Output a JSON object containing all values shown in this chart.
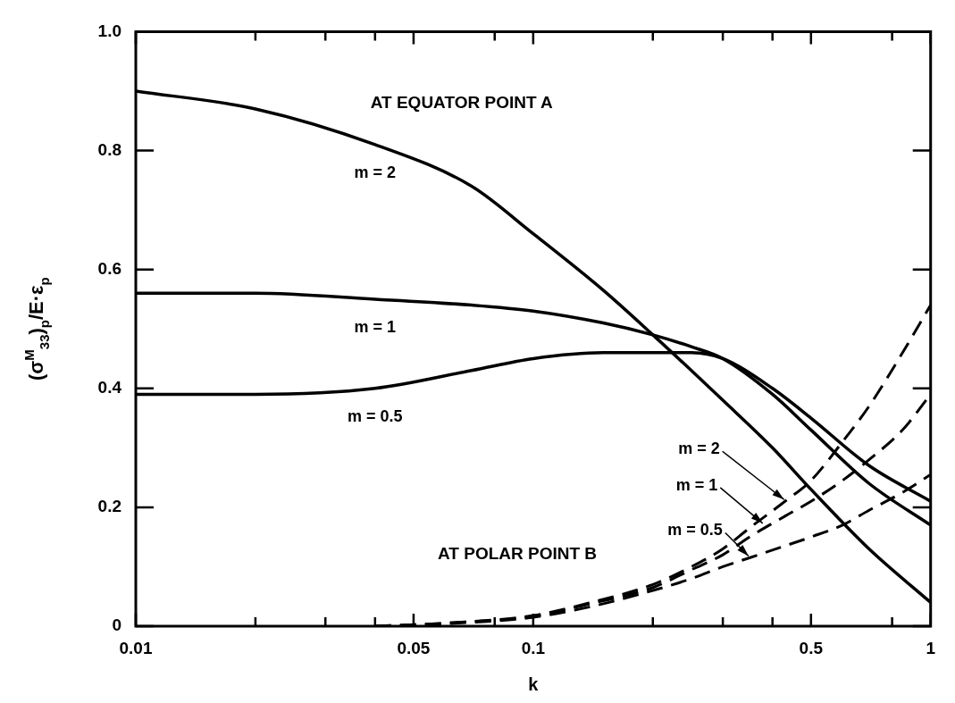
{
  "chart_data": {
    "type": "line",
    "xlabel": "k",
    "ylabel": "(σ$^{M}$$_{33}$)$_{p}$/E·ε$_{p}$",
    "annotations": [
      "AT EQUATOR POINT A",
      "AT POLAR POINT B",
      {
        "text": "m = 2",
        "x": 0.43,
        "y": 0.21
      },
      {
        "text": "m = 1",
        "x": 0.38,
        "y": 0.17
      },
      {
        "text": "m = 0.5",
        "x": 0.35,
        "y": 0.115
      }
    ],
    "log": "x",
    "xlim": [
      0.01,
      1
    ],
    "xticks": [
      0.01,
      {
        "value": 0.02,
        "label": null
      },
      {
        "value": 0.03,
        "label": null
      },
      {
        "value": 0.04,
        "label": null
      },
      0.05,
      {
        "value": 0.08,
        "label": null
      },
      0.1,
      {
        "value": 0.2,
        "label": null
      },
      {
        "value": 0.3,
        "label": null
      },
      {
        "value": 0.4,
        "label": null
      },
      0.5,
      {
        "value": 0.8,
        "label": null
      },
      1
    ],
    "ylim": [
      0,
      1
    ],
    "yticks": [
      0,
      0.2,
      0.4,
      0.6,
      0.8,
      {
        "value": 1,
        "label": "1.0"
      }
    ],
    "grid": false,
    "legend": false,
    "marker": "none",
    "series": [
      {
        "name": "m = 2",
        "color": "#000000",
        "line_style": "solid",
        "x": [
          0.01,
          0.02,
          0.04,
          0.07,
          0.1,
          0.15,
          0.2,
          0.25,
          0.3,
          0.4,
          0.5,
          0.7,
          1
        ],
        "values": [
          0.9,
          0.87,
          0.81,
          0.74,
          0.66,
          0.565,
          0.49,
          0.43,
          0.38,
          0.3,
          0.23,
          0.13,
          0.04
        ]
      },
      {
        "name": "m = 1",
        "color": "#000000",
        "line_style": "solid",
        "x": [
          0.01,
          0.02,
          0.04,
          0.07,
          0.1,
          0.15,
          0.2,
          0.25,
          0.3,
          0.4,
          0.5,
          0.7,
          1
        ],
        "values": [
          0.56,
          0.56,
          0.55,
          0.54,
          0.53,
          0.51,
          0.49,
          0.47,
          0.45,
          0.39,
          0.33,
          0.24,
          0.17
        ]
      },
      {
        "name": "m = 0.5",
        "color": "#000000",
        "line_style": "solid",
        "x": [
          0.01,
          0.02,
          0.04,
          0.07,
          0.1,
          0.15,
          0.2,
          0.25,
          0.3,
          0.4,
          0.5,
          0.7,
          1
        ],
        "values": [
          0.39,
          0.39,
          0.4,
          0.43,
          0.45,
          0.46,
          0.46,
          0.46,
          0.45,
          0.4,
          0.35,
          0.27,
          0.21
        ]
      },
      {
        "color": "#000000",
        "line_style": "dashed",
        "x": [
          0.04,
          0.06,
          0.1,
          0.14,
          0.2,
          0.25,
          0.3,
          0.35,
          0.43,
          0.5,
          0.6,
          0.7,
          0.85,
          1
        ],
        "values": [
          0,
          0.005,
          0.018,
          0.04,
          0.07,
          0.1,
          0.13,
          0.165,
          0.21,
          0.245,
          0.31,
          0.37,
          0.46,
          0.54
        ]
      },
      {
        "color": "#000000",
        "line_style": "dashed",
        "x": [
          0.04,
          0.06,
          0.1,
          0.14,
          0.2,
          0.25,
          0.3,
          0.35,
          0.43,
          0.5,
          0.6,
          0.7,
          0.85,
          1
        ],
        "values": [
          0,
          0.005,
          0.017,
          0.038,
          0.065,
          0.095,
          0.12,
          0.15,
          0.185,
          0.21,
          0.245,
          0.28,
          0.33,
          0.39
        ]
      },
      {
        "color": "#000000",
        "line_style": "dashed",
        "x": [
          0.04,
          0.06,
          0.1,
          0.14,
          0.2,
          0.25,
          0.3,
          0.35,
          0.43,
          0.5,
          0.6,
          0.7,
          0.85,
          1
        ],
        "values": [
          0,
          0.004,
          0.015,
          0.033,
          0.06,
          0.08,
          0.1,
          0.115,
          0.135,
          0.15,
          0.17,
          0.195,
          0.225,
          0.255
        ]
      }
    ]
  }
}
